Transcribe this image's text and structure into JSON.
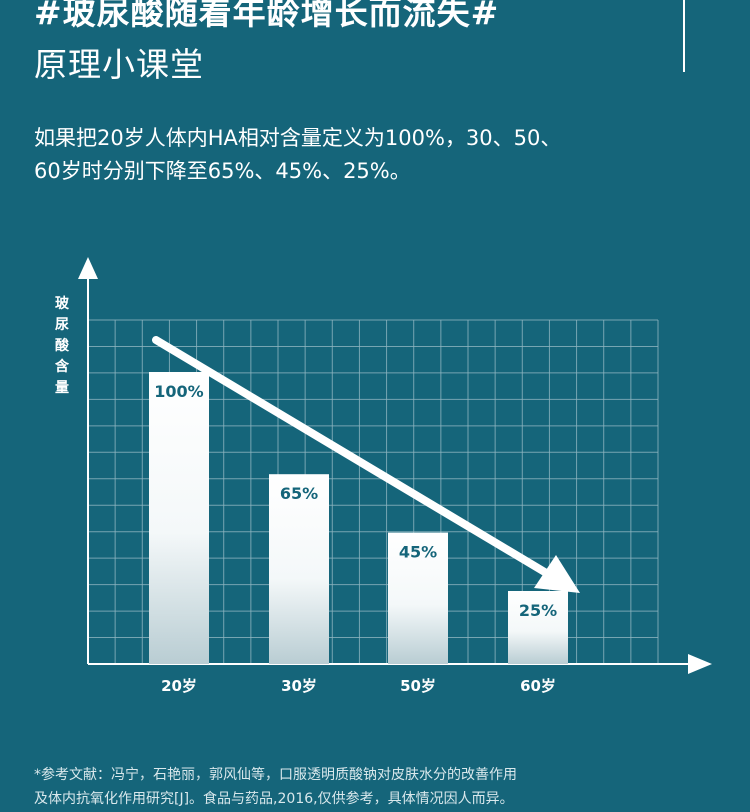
{
  "header": {
    "title": "#玻尿酸随着年龄增长而流失#",
    "subtitle": "原理小课堂"
  },
  "intro": {
    "line1": "如果把20岁人体内HA相对含量定义为100%，30、50、",
    "line2": "60岁时分别下降至65%、45%、25%。"
  },
  "chart_data": {
    "type": "bar",
    "categories": [
      "20岁",
      "30岁",
      "50岁",
      "60岁"
    ],
    "values": [
      100,
      65,
      45,
      25
    ],
    "data_labels": [
      "100%",
      "65%",
      "45%",
      "25%"
    ],
    "ylabel": "玻尿酸含量",
    "xlabel": "",
    "ylim": [
      0,
      100
    ],
    "grid": true,
    "trend_arrow": true
  },
  "reference": {
    "line1": "*参考文献：冯宁，石艳丽，郭风仙等，口服透明质酸钠对皮肤水分的改善作用",
    "line2": "及体内抗氧化作用研究[J]。食品与药品,2016,仅供参考，具体情况因人而异。"
  },
  "colors": {
    "background": "#15657a",
    "bar_top": "#ffffff",
    "bar_bottom": "#b9cdd3",
    "grid": "#8fb5c1"
  }
}
